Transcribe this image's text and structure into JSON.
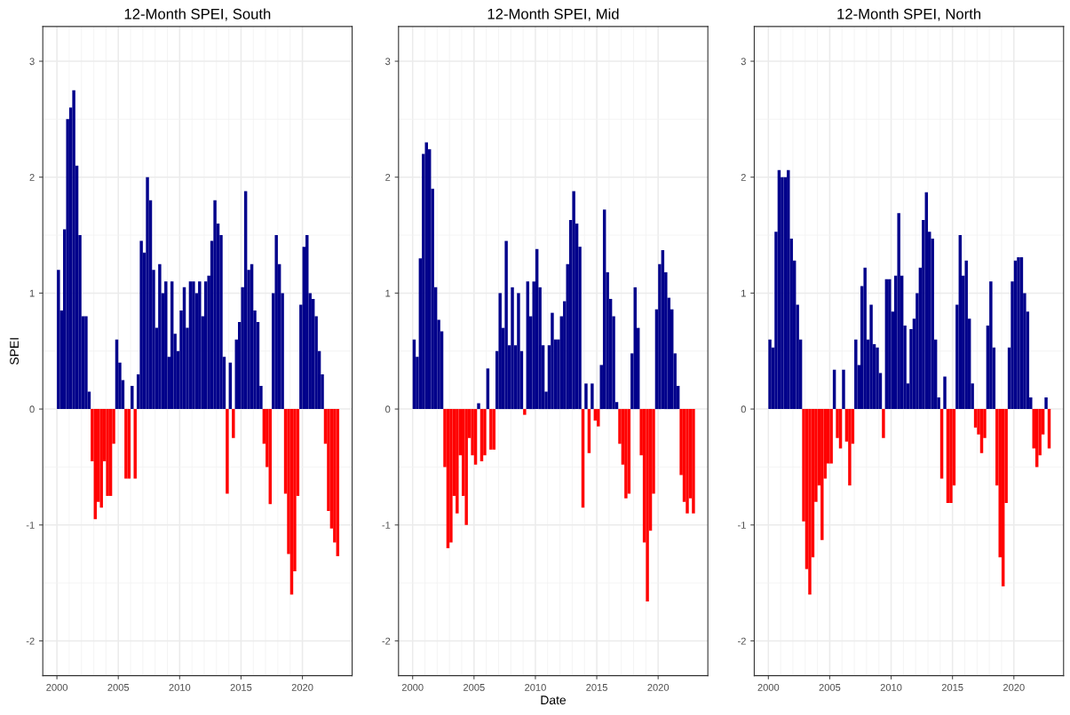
{
  "chart_data": [
    {
      "type": "bar",
      "title": "12-Month SPEI, South",
      "ylabel": "SPEI",
      "x": [
        2000.0,
        2000.25,
        2000.5,
        2000.75,
        2001.0,
        2001.25,
        2001.5,
        2001.75,
        2002.0,
        2002.25,
        2002.5,
        2002.75,
        2003.0,
        2003.25,
        2003.5,
        2003.75,
        2004.0,
        2004.25,
        2004.5,
        2004.75,
        2005.0,
        2005.25,
        2005.5,
        2005.75,
        2006.0,
        2006.25,
        2006.5,
        2006.75,
        2007.0,
        2007.25,
        2007.5,
        2007.75,
        2008.0,
        2008.25,
        2008.5,
        2008.75,
        2009.0,
        2009.25,
        2009.5,
        2009.75,
        2010.0,
        2010.25,
        2010.5,
        2010.75,
        2011.0,
        2011.25,
        2011.5,
        2011.75,
        2012.0,
        2012.25,
        2012.5,
        2012.75,
        2013.0,
        2013.25,
        2013.5,
        2013.75,
        2014.0,
        2014.25,
        2014.5,
        2014.75,
        2015.0,
        2015.25,
        2015.5,
        2015.75,
        2016.0,
        2016.25,
        2016.5,
        2016.75,
        2017.0,
        2017.25,
        2017.5,
        2017.75,
        2018.0,
        2018.25,
        2018.5,
        2018.75,
        2019.0,
        2019.25,
        2019.5,
        2019.75,
        2020.0,
        2020.25,
        2020.5,
        2020.75,
        2021.0,
        2021.25,
        2021.5,
        2021.75,
        2022.0,
        2022.25,
        2022.5,
        2022.75
      ],
      "values": [
        1.2,
        0.85,
        1.55,
        2.5,
        2.6,
        2.75,
        2.1,
        1.5,
        0.8,
        0.8,
        0.15,
        -0.45,
        -0.95,
        -0.8,
        -0.85,
        -0.45,
        -0.75,
        -0.75,
        -0.3,
        0.6,
        0.4,
        0.25,
        -0.6,
        -0.6,
        0.2,
        -0.6,
        0.3,
        1.45,
        1.35,
        2.0,
        1.8,
        1.2,
        0.7,
        1.25,
        1.0,
        1.1,
        0.45,
        1.1,
        0.65,
        0.5,
        0.85,
        1.05,
        0.7,
        1.1,
        1.1,
        1.0,
        1.1,
        0.8,
        1.1,
        1.15,
        1.45,
        1.8,
        1.6,
        1.5,
        0.45,
        -0.73,
        0.4,
        -0.25,
        0.6,
        0.75,
        1.05,
        1.88,
        1.2,
        1.25,
        0.85,
        0.75,
        0.2,
        -0.3,
        -0.5,
        -0.82,
        1.0,
        1.5,
        1.25,
        1.0,
        -0.73,
        -1.25,
        -1.6,
        -1.4,
        -0.75,
        0.9,
        1.4,
        1.5,
        1.0,
        0.95,
        0.8,
        0.5,
        0.3,
        -0.3,
        -0.88,
        -1.03,
        -1.15,
        -1.27
      ],
      "colors": [
        "#00008b",
        "#00008b",
        "#00008b",
        "#00008b",
        "#00008b",
        "#00008b",
        "#00008b",
        "#00008b",
        "#00008b",
        "#00008b",
        "#00008b",
        "#ff0000",
        "#ff0000",
        "#ff0000",
        "#ff0000",
        "#ff0000",
        "#ff0000",
        "#ff0000",
        "#ff0000",
        "#00008b",
        "#00008b",
        "#00008b",
        "#ff0000",
        "#ff0000",
        "#00008b",
        "#ff0000",
        "#00008b",
        "#00008b",
        "#00008b",
        "#00008b",
        "#00008b",
        "#00008b",
        "#00008b",
        "#00008b",
        "#00008b",
        "#00008b",
        "#00008b",
        "#00008b",
        "#00008b",
        "#00008b",
        "#00008b",
        "#00008b",
        "#00008b",
        "#00008b",
        "#00008b",
        "#00008b",
        "#00008b",
        "#00008b",
        "#00008b",
        "#00008b",
        "#00008b",
        "#00008b",
        "#00008b",
        "#00008b",
        "#00008b",
        "#ff0000",
        "#00008b",
        "#ff0000",
        "#00008b",
        "#00008b",
        "#00008b",
        "#00008b",
        "#00008b",
        "#00008b",
        "#00008b",
        "#00008b",
        "#00008b",
        "#ff0000",
        "#ff0000",
        "#ff0000",
        "#00008b",
        "#00008b",
        "#00008b",
        "#00008b",
        "#ff0000",
        "#ff0000",
        "#ff0000",
        "#ff0000",
        "#ff0000",
        "#00008b",
        "#00008b",
        "#00008b",
        "#00008b",
        "#00008b",
        "#00008b",
        "#00008b",
        "#00008b",
        "#ff0000",
        "#ff0000",
        "#ff0000",
        "#ff0000",
        "#ff0000"
      ],
      "xlim": [
        1998.85,
        2024.05
      ],
      "xticks": [
        2000,
        2005,
        2010,
        2015,
        2020
      ],
      "ylim": [
        -2.3,
        3.3
      ],
      "yticks": [
        -2,
        -1,
        0,
        1,
        2,
        3
      ],
      "grid": true
    },
    {
      "type": "bar",
      "title": "12-Month SPEI, Mid",
      "xlabel": "Date",
      "x": [
        2000.0,
        2000.25,
        2000.5,
        2000.75,
        2001.0,
        2001.25,
        2001.5,
        2001.75,
        2002.0,
        2002.25,
        2002.5,
        2002.75,
        2003.0,
        2003.25,
        2003.5,
        2003.75,
        2004.0,
        2004.25,
        2004.5,
        2004.75,
        2005.0,
        2005.25,
        2005.5,
        2005.75,
        2006.0,
        2006.25,
        2006.5,
        2006.75,
        2007.0,
        2007.25,
        2007.5,
        2007.75,
        2008.0,
        2008.25,
        2008.5,
        2008.75,
        2009.0,
        2009.25,
        2009.5,
        2009.75,
        2010.0,
        2010.25,
        2010.5,
        2010.75,
        2011.0,
        2011.25,
        2011.5,
        2011.75,
        2012.0,
        2012.25,
        2012.5,
        2012.75,
        2013.0,
        2013.25,
        2013.5,
        2013.75,
        2014.0,
        2014.25,
        2014.5,
        2014.75,
        2015.0,
        2015.25,
        2015.5,
        2015.75,
        2016.0,
        2016.25,
        2016.5,
        2016.75,
        2017.0,
        2017.25,
        2017.5,
        2017.75,
        2018.0,
        2018.25,
        2018.5,
        2018.75,
        2019.0,
        2019.25,
        2019.5,
        2019.75,
        2020.0,
        2020.25,
        2020.5,
        2020.75,
        2021.0,
        2021.25,
        2021.5,
        2021.75,
        2022.0,
        2022.25,
        2022.5,
        2022.75
      ],
      "values": [
        0.6,
        0.45,
        1.3,
        2.2,
        2.3,
        2.24,
        1.9,
        1.05,
        0.77,
        0.67,
        -0.5,
        -1.2,
        -1.15,
        -0.75,
        -0.9,
        -0.4,
        -0.75,
        -1.0,
        -0.25,
        -0.4,
        -0.48,
        0.05,
        -0.45,
        -0.4,
        0.35,
        -0.35,
        -0.35,
        0.5,
        1.0,
        0.7,
        1.45,
        0.55,
        1.05,
        0.55,
        1.0,
        0.5,
        -0.05,
        1.1,
        0.8,
        1.1,
        1.38,
        1.05,
        0.55,
        0.15,
        0.55,
        0.83,
        0.6,
        0.6,
        0.8,
        0.93,
        1.25,
        1.63,
        1.88,
        1.6,
        1.4,
        -0.85,
        0.22,
        -0.38,
        0.22,
        -0.1,
        -0.15,
        0.38,
        1.72,
        1.18,
        0.95,
        0.8,
        0.06,
        -0.3,
        -0.48,
        -0.77,
        -0.73,
        0.48,
        1.05,
        0.7,
        -0.4,
        -1.15,
        -1.66,
        -1.05,
        -0.73,
        0.86,
        1.25,
        1.37,
        1.18,
        0.96,
        0.86,
        0.48,
        0.2,
        -0.57,
        -0.8,
        -0.9,
        -0.77,
        -0.9
      ],
      "colors": [
        "#00008b",
        "#00008b",
        "#00008b",
        "#00008b",
        "#00008b",
        "#00008b",
        "#00008b",
        "#00008b",
        "#00008b",
        "#00008b",
        "#ff0000",
        "#ff0000",
        "#ff0000",
        "#ff0000",
        "#ff0000",
        "#ff0000",
        "#ff0000",
        "#ff0000",
        "#ff0000",
        "#ff0000",
        "#ff0000",
        "#00008b",
        "#ff0000",
        "#ff0000",
        "#00008b",
        "#ff0000",
        "#ff0000",
        "#00008b",
        "#00008b",
        "#00008b",
        "#00008b",
        "#00008b",
        "#00008b",
        "#00008b",
        "#00008b",
        "#00008b",
        "#ff0000",
        "#00008b",
        "#00008b",
        "#00008b",
        "#00008b",
        "#00008b",
        "#00008b",
        "#00008b",
        "#00008b",
        "#00008b",
        "#00008b",
        "#00008b",
        "#00008b",
        "#00008b",
        "#00008b",
        "#00008b",
        "#00008b",
        "#00008b",
        "#00008b",
        "#ff0000",
        "#00008b",
        "#ff0000",
        "#00008b",
        "#ff0000",
        "#ff0000",
        "#00008b",
        "#00008b",
        "#00008b",
        "#00008b",
        "#00008b",
        "#00008b",
        "#ff0000",
        "#ff0000",
        "#ff0000",
        "#ff0000",
        "#00008b",
        "#00008b",
        "#00008b",
        "#ff0000",
        "#ff0000",
        "#ff0000",
        "#ff0000",
        "#ff0000",
        "#00008b",
        "#00008b",
        "#00008b",
        "#00008b",
        "#00008b",
        "#00008b",
        "#00008b",
        "#00008b",
        "#ff0000",
        "#ff0000",
        "#ff0000",
        "#ff0000",
        "#ff0000"
      ],
      "xlim": [
        1998.85,
        2024.05
      ],
      "xticks": [
        2000,
        2005,
        2010,
        2015,
        2020
      ],
      "ylim": [
        -2.3,
        3.3
      ],
      "yticks": [
        -2,
        -1,
        0,
        1,
        2,
        3
      ],
      "grid": true
    },
    {
      "type": "bar",
      "title": "12-Month SPEI, North",
      "x": [
        2000.0,
        2000.25,
        2000.5,
        2000.75,
        2001.0,
        2001.25,
        2001.5,
        2001.75,
        2002.0,
        2002.25,
        2002.5,
        2002.75,
        2003.0,
        2003.25,
        2003.5,
        2003.75,
        2004.0,
        2004.25,
        2004.5,
        2004.75,
        2005.0,
        2005.25,
        2005.5,
        2005.75,
        2006.0,
        2006.25,
        2006.5,
        2006.75,
        2007.0,
        2007.25,
        2007.5,
        2007.75,
        2008.0,
        2008.25,
        2008.5,
        2008.75,
        2009.0,
        2009.25,
        2009.5,
        2009.75,
        2010.0,
        2010.25,
        2010.5,
        2010.75,
        2011.0,
        2011.25,
        2011.5,
        2011.75,
        2012.0,
        2012.25,
        2012.5,
        2012.75,
        2013.0,
        2013.25,
        2013.5,
        2013.75,
        2014.0,
        2014.25,
        2014.5,
        2014.75,
        2015.0,
        2015.25,
        2015.5,
        2015.75,
        2016.0,
        2016.25,
        2016.5,
        2016.75,
        2017.0,
        2017.25,
        2017.5,
        2017.75,
        2018.0,
        2018.25,
        2018.5,
        2018.75,
        2019.0,
        2019.25,
        2019.5,
        2019.75,
        2020.0,
        2020.25,
        2020.5,
        2020.75,
        2021.0,
        2021.25,
        2021.5,
        2021.75,
        2022.0,
        2022.25,
        2022.5,
        2022.75
      ],
      "values": [
        0.6,
        0.53,
        1.53,
        2.06,
        2.0,
        2.0,
        2.06,
        1.47,
        1.28,
        0.9,
        0.6,
        -0.97,
        -1.38,
        -1.6,
        -1.28,
        -0.8,
        -0.66,
        -1.13,
        -0.6,
        -0.47,
        -0.47,
        0.34,
        -0.25,
        -0.34,
        0.34,
        -0.28,
        -0.66,
        -0.3,
        0.6,
        0.38,
        1.06,
        1.22,
        0.6,
        0.9,
        0.56,
        0.53,
        0.31,
        -0.25,
        1.12,
        1.12,
        0.84,
        1.15,
        1.69,
        1.15,
        0.72,
        0.22,
        0.69,
        0.78,
        1.0,
        1.22,
        1.63,
        1.87,
        1.53,
        1.47,
        0.6,
        0.1,
        -0.6,
        0.28,
        -0.81,
        -0.81,
        -0.66,
        0.9,
        1.5,
        1.15,
        1.28,
        0.78,
        0.22,
        -0.16,
        -0.22,
        -0.38,
        -0.25,
        0.72,
        1.1,
        0.53,
        -0.66,
        -1.28,
        -1.53,
        -0.81,
        0.53,
        1.1,
        1.28,
        1.31,
        1.31,
        1.0,
        0.84,
        0.1,
        -0.34,
        -0.5,
        -0.4,
        -0.22,
        0.1,
        -0.34
      ],
      "colors": [
        "#00008b",
        "#00008b",
        "#00008b",
        "#00008b",
        "#00008b",
        "#00008b",
        "#00008b",
        "#00008b",
        "#00008b",
        "#00008b",
        "#00008b",
        "#ff0000",
        "#ff0000",
        "#ff0000",
        "#ff0000",
        "#ff0000",
        "#ff0000",
        "#ff0000",
        "#ff0000",
        "#ff0000",
        "#ff0000",
        "#00008b",
        "#ff0000",
        "#ff0000",
        "#00008b",
        "#ff0000",
        "#ff0000",
        "#ff0000",
        "#00008b",
        "#00008b",
        "#00008b",
        "#00008b",
        "#00008b",
        "#00008b",
        "#00008b",
        "#00008b",
        "#00008b",
        "#ff0000",
        "#00008b",
        "#00008b",
        "#00008b",
        "#00008b",
        "#00008b",
        "#00008b",
        "#00008b",
        "#00008b",
        "#00008b",
        "#00008b",
        "#00008b",
        "#00008b",
        "#00008b",
        "#00008b",
        "#00008b",
        "#00008b",
        "#00008b",
        "#00008b",
        "#ff0000",
        "#00008b",
        "#ff0000",
        "#ff0000",
        "#ff0000",
        "#00008b",
        "#00008b",
        "#00008b",
        "#00008b",
        "#00008b",
        "#00008b",
        "#ff0000",
        "#ff0000",
        "#ff0000",
        "#ff0000",
        "#00008b",
        "#00008b",
        "#00008b",
        "#ff0000",
        "#ff0000",
        "#ff0000",
        "#ff0000",
        "#00008b",
        "#00008b",
        "#00008b",
        "#00008b",
        "#00008b",
        "#00008b",
        "#00008b",
        "#00008b",
        "#ff0000",
        "#ff0000",
        "#ff0000",
        "#ff0000",
        "#00008b",
        "#ff0000"
      ],
      "xlim": [
        1998.85,
        2024.05
      ],
      "xticks": [
        2000,
        2005,
        2010,
        2015,
        2020
      ],
      "ylim": [
        -2.3,
        3.3
      ],
      "yticks": [
        -2,
        -1,
        0,
        1,
        2,
        3
      ],
      "grid": true
    }
  ]
}
